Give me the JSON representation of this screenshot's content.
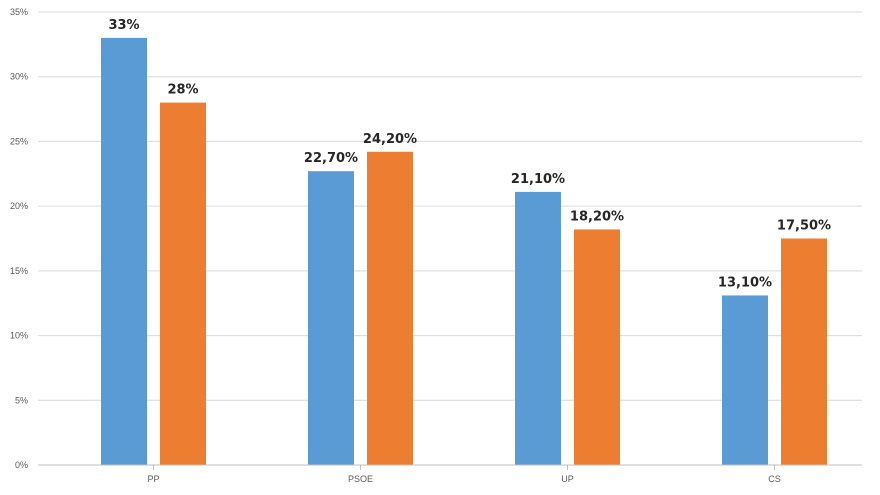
{
  "chart_data": {
    "type": "bar",
    "categories": [
      "PP",
      "PSOE",
      "UP",
      "CS"
    ],
    "series": [
      {
        "color": "#5b9bd5",
        "values": [
          33,
          22.7,
          21.1,
          13.1
        ],
        "labels": [
          "33%",
          "22,70%",
          "21,10%",
          "13,10%"
        ]
      },
      {
        "color": "#ed7d31",
        "values": [
          28,
          24.2,
          18.2,
          17.5
        ],
        "labels": [
          "28%",
          "24,20%",
          "18,20%",
          "17,50%"
        ]
      }
    ],
    "y_ticks": [
      0,
      5,
      10,
      15,
      20,
      25,
      30,
      35
    ],
    "y_tick_labels": [
      "0%",
      "5%",
      "10%",
      "15%",
      "20%",
      "25%",
      "30%",
      "35%"
    ],
    "ylim": [
      0,
      35
    ],
    "grid": true,
    "legend": "none"
  }
}
